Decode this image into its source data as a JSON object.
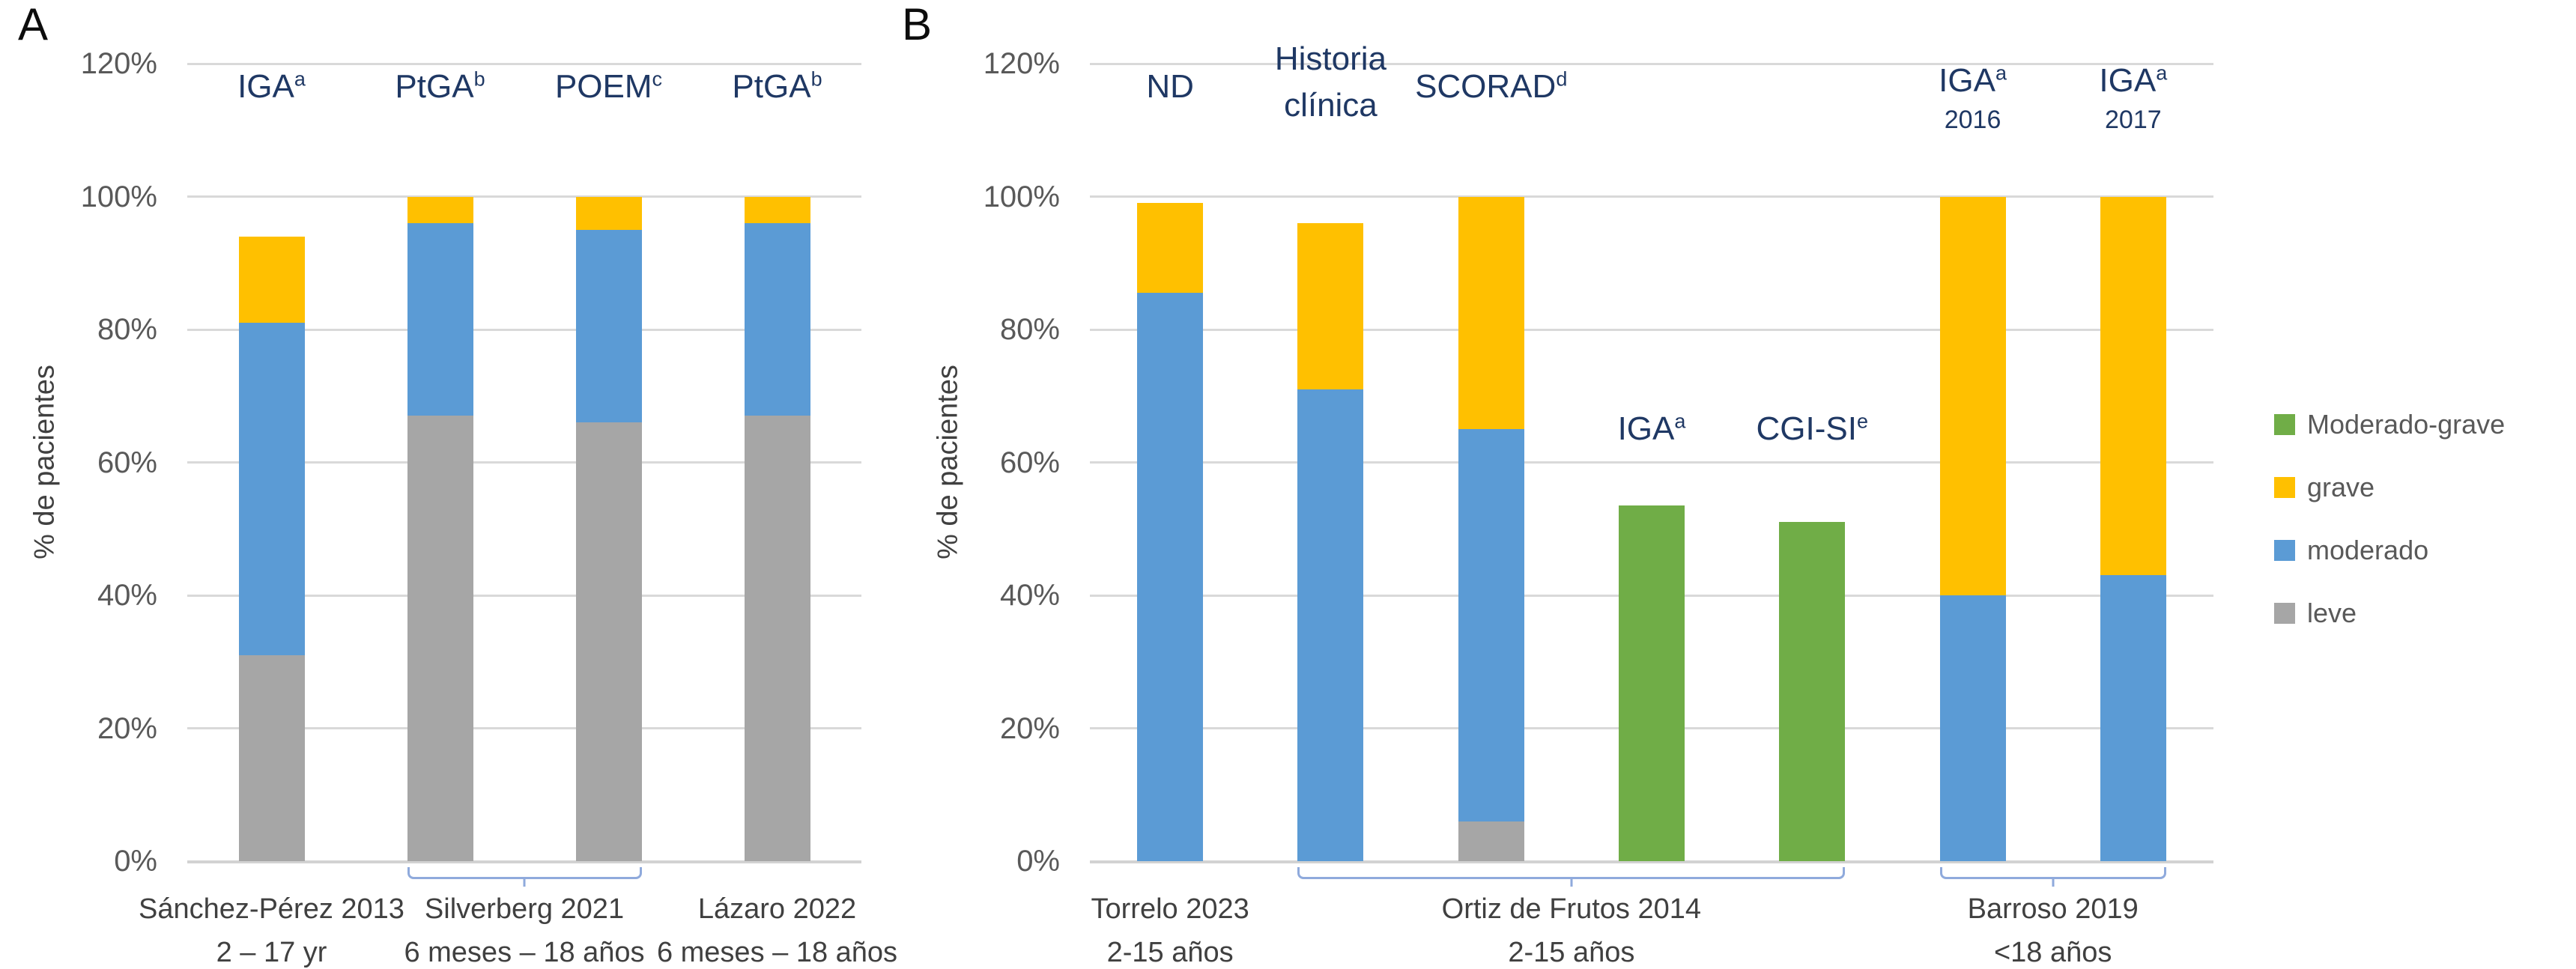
{
  "colors": {
    "leve": "#A6A6A6",
    "moderado": "#5B9BD5",
    "grave": "#FFC000",
    "moderado_grave": "#70AD47",
    "bracket": "#8FAADC",
    "measure_label_text": "#1F3864",
    "axis_text": "#595959",
    "gridline": "#D9D9D9"
  },
  "legend": {
    "position": "right",
    "items": [
      {
        "key": "moderado_grave",
        "label": "Moderado-grave"
      },
      {
        "key": "grave",
        "label": "grave"
      },
      {
        "key": "moderado",
        "label": "moderado"
      },
      {
        "key": "leve",
        "label": "leve"
      }
    ]
  },
  "chart_data": [
    {
      "panel_letter": "A",
      "type": "bar",
      "stacked": true,
      "ylabel": "% de pacientes",
      "ymax": 120,
      "ylim": [
        0,
        120
      ],
      "grid": true,
      "yticks": [
        "0%",
        "20%",
        "40%",
        "60%",
        "80%",
        "100%",
        "120%"
      ],
      "bars": [
        {
          "measure_label": {
            "y": 116.5,
            "lines": [
              {
                "text": "IGA",
                "sup": "a"
              }
            ]
          },
          "segments": [
            {
              "key": "leve",
              "value": 31
            },
            {
              "key": "moderado",
              "value": 50
            },
            {
              "key": "grave",
              "value": 13
            }
          ]
        },
        {
          "measure_label": {
            "y": 116.5,
            "lines": [
              {
                "text": "PtGA",
                "sup": "b"
              }
            ]
          },
          "segments": [
            {
              "key": "leve",
              "value": 67
            },
            {
              "key": "moderado",
              "value": 29
            },
            {
              "key": "grave",
              "value": 4
            }
          ]
        },
        {
          "measure_label": {
            "y": 116.5,
            "lines": [
              {
                "text": "POEM",
                "sup": "c"
              }
            ]
          },
          "segments": [
            {
              "key": "leve",
              "value": 66
            },
            {
              "key": "moderado",
              "value": 29
            },
            {
              "key": "grave",
              "value": 5
            }
          ]
        },
        {
          "measure_label": {
            "y": 116.5,
            "lines": [
              {
                "text": "PtGA",
                "sup": "b"
              }
            ]
          },
          "segments": [
            {
              "key": "leve",
              "value": 67
            },
            {
              "key": "moderado",
              "value": 29
            },
            {
              "key": "grave",
              "value": 4
            }
          ]
        }
      ],
      "group_labels": [
        {
          "title": "Sánchez-Pérez 2013",
          "sub": "2 – 17 yr",
          "center_slot": 0
        },
        {
          "title": "Silverberg 2021",
          "sub": "6 meses – 18 años",
          "center_slot": 1.5
        },
        {
          "title": "Lázaro 2022",
          "sub": "6 meses – 18 años",
          "center_slot": 3
        }
      ],
      "brackets": [
        {
          "from": 1,
          "to": 2
        }
      ]
    },
    {
      "panel_letter": "B",
      "type": "bar",
      "stacked": true,
      "ylabel": "% de pacientes",
      "ymax": 120,
      "ylim": [
        0,
        120
      ],
      "grid": true,
      "yticks": [
        "0%",
        "20%",
        "40%",
        "60%",
        "80%",
        "100%",
        "120%"
      ],
      "bars": [
        {
          "measure_label": {
            "y": 116.5,
            "lines": [
              {
                "text": "ND"
              }
            ]
          },
          "segments": [
            {
              "key": "moderado",
              "value": 85.5
            },
            {
              "key": "grave",
              "value": 13.5
            }
          ]
        },
        {
          "measure_label": {
            "y": 117.2,
            "lines": [
              {
                "text": "Historia"
              },
              {
                "text": "clínica"
              }
            ]
          },
          "segments": [
            {
              "key": "moderado",
              "value": 71
            },
            {
              "key": "grave",
              "value": 25
            }
          ]
        },
        {
          "measure_label": {
            "y": 116.5,
            "lines": [
              {
                "text": "SCORAD",
                "sup": "d"
              }
            ]
          },
          "segments": [
            {
              "key": "leve",
              "value": 6
            },
            {
              "key": "moderado",
              "value": 59
            },
            {
              "key": "grave",
              "value": 35
            }
          ]
        },
        {
          "measure_label": {
            "y": 65,
            "lines": [
              {
                "text": "IGA",
                "sup": "a"
              }
            ]
          },
          "segments": [
            {
              "key": "moderado_grave",
              "value": 53.5
            }
          ]
        },
        {
          "measure_label": {
            "y": 65,
            "lines": [
              {
                "text": "CGI-SI",
                "sup": "e"
              }
            ]
          },
          "segments": [
            {
              "key": "moderado_grave",
              "value": 51
            }
          ]
        },
        {
          "measure_label": {
            "y": 115,
            "lines": [
              {
                "text": "IGA",
                "sup": "a"
              },
              {
                "text": "2016",
                "small": true
              }
            ]
          },
          "segments": [
            {
              "key": "moderado",
              "value": 40
            },
            {
              "key": "grave",
              "value": 60
            }
          ]
        },
        {
          "measure_label": {
            "y": 115,
            "lines": [
              {
                "text": "IGA",
                "sup": "a"
              },
              {
                "text": "2017",
                "small": true
              }
            ]
          },
          "segments": [
            {
              "key": "moderado",
              "value": 43
            },
            {
              "key": "grave",
              "value": 57
            }
          ]
        }
      ],
      "group_labels": [
        {
          "title": "Torrelo 2023",
          "sub": "2-15 años",
          "center_slot": 0
        },
        {
          "title": "Ortiz de Frutos 2014",
          "sub": "2-15 años",
          "center_slot": 2.5
        },
        {
          "title": "Barroso 2019",
          "sub": "<18 años",
          "center_slot": 5.5
        }
      ],
      "brackets": [
        {
          "from": 1,
          "to": 4
        },
        {
          "from": 5,
          "to": 6
        }
      ]
    }
  ]
}
